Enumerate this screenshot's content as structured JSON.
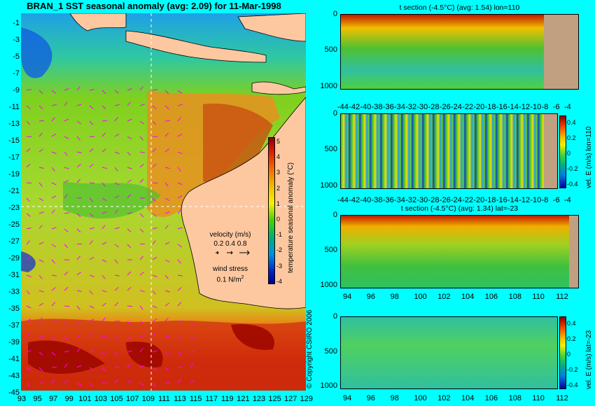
{
  "map": {
    "title": "BRAN_1  SST seasonal anomaly  (avg: 2.09)  for 11-Mar-1998",
    "lat_ticks": [
      "-1",
      "-3",
      "-5",
      "-7",
      "-9",
      "-11",
      "-13",
      "-15",
      "-17",
      "-19",
      "-21",
      "-23",
      "-25",
      "-27",
      "-29",
      "-31",
      "-33",
      "-35",
      "-37",
      "-39",
      "-41",
      "-43",
      "-45"
    ],
    "lon_ticks": [
      "93",
      "95",
      "97",
      "99",
      "101",
      "103",
      "105",
      "107",
      "109",
      "111",
      "113",
      "115",
      "117",
      "119",
      "121",
      "123",
      "125",
      "127",
      "129"
    ],
    "colorbar": {
      "ticks": [
        "5",
        "4",
        "3",
        "2",
        "1",
        "0",
        "-1",
        "-2",
        "-3",
        "-4"
      ],
      "label": "temperature seasonal anomaly (°C)"
    },
    "velocity_legend": {
      "title": "velocity (m/s)",
      "values": "0.2 0.4 0.8",
      "wind_title": "wind stress",
      "wind_value": "0.1 N/m",
      "wind_sup": "2"
    },
    "land_color": "#fdc8a0",
    "guide_line_color": "#ffffff",
    "arrow_color": "#ff00ff"
  },
  "copyright": "© Copyright CSIRO 2006",
  "panels": [
    {
      "subtitle": "t section (-4.5°C) (avg: 1.54) lon=110",
      "depth_ticks": [
        "0",
        "500",
        "1000"
      ],
      "x_ticks": [
        "-44",
        "-42",
        "-40",
        "-38",
        "-36",
        "-34",
        "-32",
        "-30",
        "-28",
        "-26",
        "-24",
        "-22",
        "-20",
        "-18",
        "-16",
        "-14",
        "-12",
        "-10",
        "-8",
        "-6",
        "-4"
      ],
      "land_color": "#c0a080"
    },
    {
      "subtitle": "",
      "depth_ticks": [
        "0",
        "500",
        "1000"
      ],
      "x_ticks": [
        "-44",
        "-42",
        "-40",
        "-38",
        "-36",
        "-34",
        "-32",
        "-30",
        "-28",
        "-26",
        "-24",
        "-22",
        "-20",
        "-18",
        "-16",
        "-14",
        "-12",
        "-10",
        "-8",
        "-6",
        "-4"
      ],
      "colorbar_ticks": [
        "0.4",
        "0.2",
        "0",
        "-0.2",
        "-0.4"
      ],
      "colorbar_label": "vel. E (m/s) lon=110",
      "land_color": "#c0a080"
    },
    {
      "subtitle": "t section (-4.5°C) (avg: 1.34) lat=-23",
      "depth_ticks": [
        "0",
        "500",
        "1000"
      ],
      "x_ticks": [
        "94",
        "96",
        "98",
        "100",
        "102",
        "104",
        "106",
        "108",
        "110",
        "112"
      ],
      "land_color": "#c0a080"
    },
    {
      "subtitle": "",
      "depth_ticks": [
        "0",
        "500",
        "1000"
      ],
      "x_ticks": [
        "94",
        "96",
        "98",
        "100",
        "102",
        "104",
        "106",
        "108",
        "110",
        "112"
      ],
      "colorbar_ticks": [
        "0.4",
        "0.2",
        "0",
        "-0.2",
        "-0.4"
      ],
      "colorbar_label": "vel. E (m/s) lat=-23"
    }
  ]
}
